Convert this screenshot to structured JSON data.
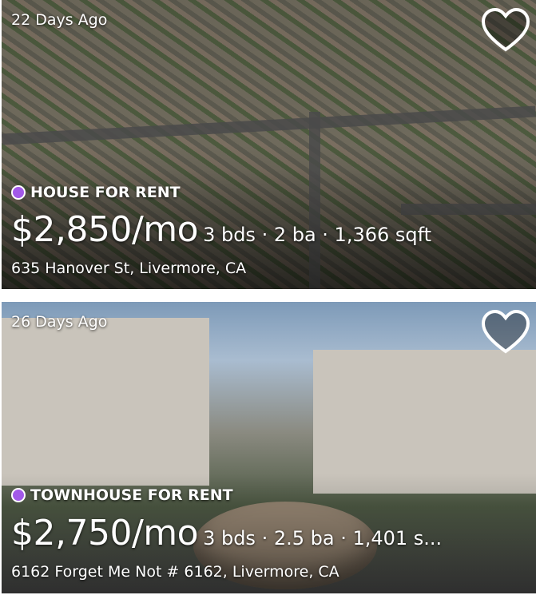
{
  "listings": [
    {
      "age": "22 Days Ago",
      "type": "HOUSE FOR RENT",
      "price": "$2,850/mo",
      "facts": "3 bds · 2 ba · 1,366 sqft",
      "address": "635 Hanover St, Livermore, CA",
      "favorite_icon": "heart-outline-icon"
    },
    {
      "age": "26 Days Ago",
      "type": "TOWNHOUSE FOR RENT",
      "price": "$2,750/mo",
      "facts": "3 bds · 2.5 ba · 1,401 s...",
      "address": "6162 Forget Me Not # 6162, Livermore, CA",
      "favorite_icon": "heart-outline-icon"
    }
  ],
  "colors": {
    "type_dot": "#a259e8",
    "text": "#ffffff"
  }
}
